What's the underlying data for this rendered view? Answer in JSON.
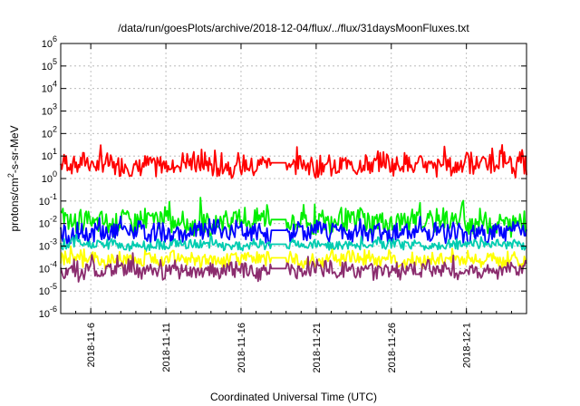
{
  "chart_data": {
    "type": "line",
    "title": "/data/run/goesPlots/archive/2018-12-04/flux/../flux/31daysMoonFluxes.txt",
    "xlabel": "Coordinated Universal Time (UTC)",
    "ylabel": "protons/cm²-s-sr-MeV",
    "ylabel_parts": {
      "prefix": "protons/cm",
      "sup": "2",
      "suffix": "-s-sr-MeV"
    },
    "y_scale": "log",
    "ylim": [
      1e-06,
      1000000.0
    ],
    "y_ticks": [
      {
        "value": 1e-06,
        "base": "10",
        "exp": "-6"
      },
      {
        "value": 1e-05,
        "base": "10",
        "exp": "-5"
      },
      {
        "value": 0.0001,
        "base": "10",
        "exp": "-4"
      },
      {
        "value": 0.001,
        "base": "10",
        "exp": "-3"
      },
      {
        "value": 0.01,
        "base": "10",
        "exp": "-2"
      },
      {
        "value": 0.1,
        "base": "10",
        "exp": "-1"
      },
      {
        "value": 1.0,
        "base": "10",
        "exp": "0"
      },
      {
        "value": 10.0,
        "base": "10",
        "exp": "1"
      },
      {
        "value": 100.0,
        "base": "10",
        "exp": "2"
      },
      {
        "value": 1000.0,
        "base": "10",
        "exp": "3"
      },
      {
        "value": 10000.0,
        "base": "10",
        "exp": "4"
      },
      {
        "value": 100000.0,
        "base": "10",
        "exp": "5"
      },
      {
        "value": 1000000.0,
        "base": "10",
        "exp": "6"
      }
    ],
    "xlim": [
      "2018-11-04",
      "2018-12-05"
    ],
    "x_ticks": [
      "2018-11-6",
      "2018-11-11",
      "2018-11-16",
      "2018-11-21",
      "2018-11-26",
      "2018-12-1"
    ],
    "x_tick_dates": [
      "2018-11-06",
      "2018-11-11",
      "2018-11-16",
      "2018-11-21",
      "2018-11-26",
      "2018-12-01"
    ],
    "grid": true,
    "gap": [
      "2018-11-18",
      "2018-11-19"
    ],
    "series": [
      {
        "color": "#ff0000",
        "base": 4.0,
        "spread": 0.45,
        "gap_value": 5.0
      },
      {
        "color": "#00ee00",
        "base": 0.012,
        "spread": 0.5,
        "gap_value": 0.015
      },
      {
        "color": "#0000ff",
        "base": 0.004,
        "spread": 0.4,
        "gap_value": 0.005
      },
      {
        "color": "#00ccb0",
        "base": 0.0011,
        "spread": 0.2,
        "gap_value": 0.0012
      },
      {
        "color": "#ffff00",
        "base": 0.00025,
        "spread": 0.3,
        "gap_value": 0.0003
      },
      {
        "color": "#8b2c6e",
        "base": 8e-05,
        "spread": 0.35,
        "gap_value": 0.0001
      }
    ]
  }
}
